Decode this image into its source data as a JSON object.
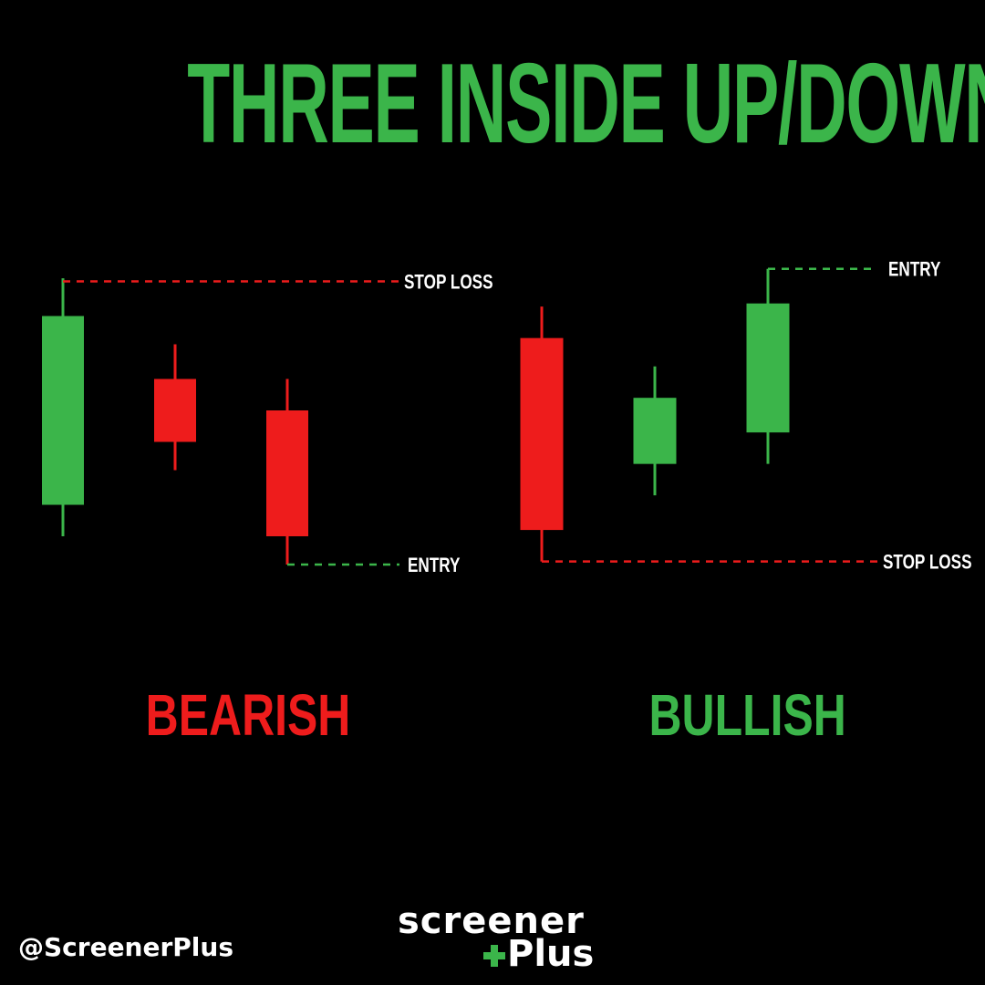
{
  "title": "THREE INSIDE UP/DOWN",
  "colors": {
    "background": "#000000",
    "bullish": "#3bb54a",
    "bearish": "#ee1c1c",
    "text": "#ffffff"
  },
  "patterns": [
    {
      "label": "BEARISH",
      "candles": [
        {
          "direction": "up",
          "open": 3,
          "close": 9,
          "high": 10.2,
          "low": 2
        },
        {
          "direction": "down",
          "open": 7,
          "close": 5,
          "high": 8.1,
          "low": 4.1
        },
        {
          "direction": "down",
          "open": 6,
          "close": 2,
          "high": 7,
          "low": 1.1
        }
      ],
      "levels": [
        {
          "label": "STOP LOSS",
          "price": 10.1,
          "color": "bearish"
        },
        {
          "label": "ENTRY",
          "price": 1.1,
          "color": "bullish"
        }
      ]
    },
    {
      "label": "BULLISH",
      "candles": [
        {
          "direction": "down",
          "open": 8.3,
          "close": 2.2,
          "high": 9.3,
          "low": 1.2
        },
        {
          "direction": "up",
          "open": 4.3,
          "close": 6.4,
          "high": 7.4,
          "low": 3.3
        },
        {
          "direction": "up",
          "open": 5.3,
          "close": 9.4,
          "high": 10.5,
          "low": 4.3
        }
      ],
      "levels": [
        {
          "label": "ENTRY",
          "price": 10.5,
          "color": "bullish"
        },
        {
          "label": "STOP LOSS",
          "price": 1.2,
          "color": "bearish"
        }
      ]
    }
  ],
  "footer": {
    "handle": "@ScreenerPlus",
    "logo_top": "screener",
    "logo_bottom": "Plus",
    "logo_plus_symbol": "+"
  }
}
